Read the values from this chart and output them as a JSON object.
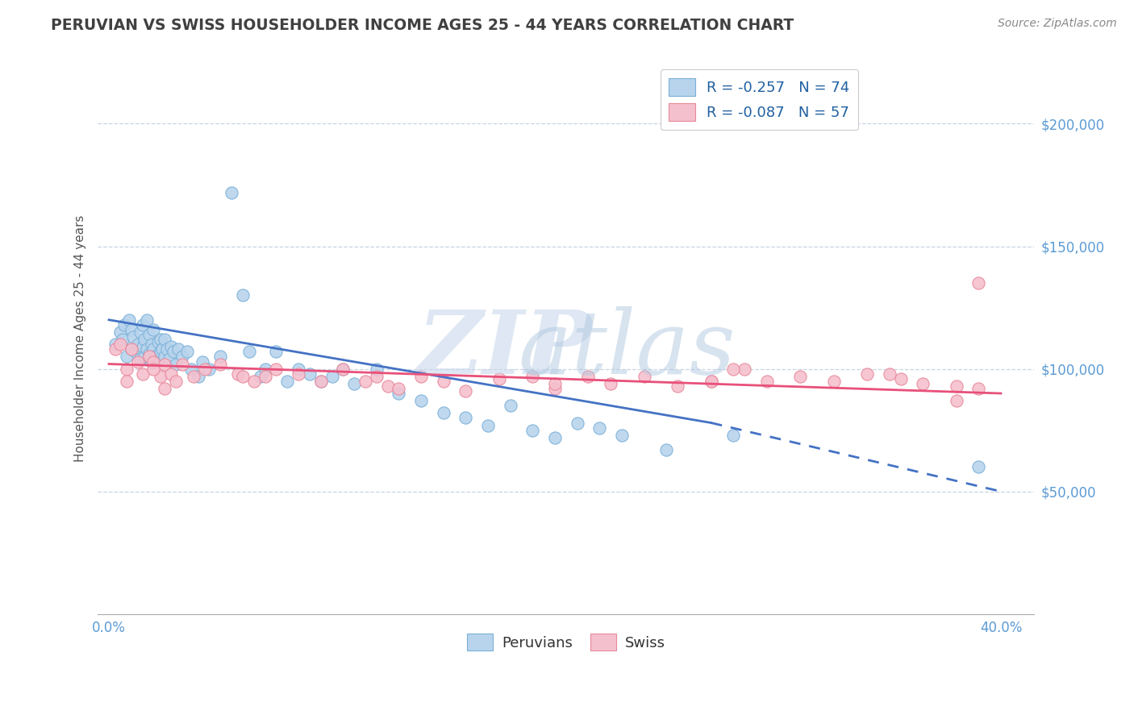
{
  "title": "PERUVIAN VS SWISS HOUSEHOLDER INCOME AGES 25 - 44 YEARS CORRELATION CHART",
  "source_text": "Source: ZipAtlas.com",
  "ylabel": "Householder Income Ages 25 - 44 years",
  "xlim": [
    -0.005,
    0.415
  ],
  "ylim": [
    0,
    225000
  ],
  "yticks": [
    0,
    50000,
    100000,
    150000,
    200000
  ],
  "ytick_labels": [
    "",
    "$50,000",
    "$100,000",
    "$150,000",
    "$200,000"
  ],
  "xtick_labels": [
    "0.0%",
    "",
    "",
    "",
    "40.0%"
  ],
  "xticks": [
    0.0,
    0.1,
    0.2,
    0.3,
    0.4
  ],
  "legend_entry_1": "R = -0.257   N = 74",
  "legend_entry_2": "R = -0.087   N = 57",
  "peruvian_color": "#b8d4ed",
  "peruvian_edge": "#7ab0d8",
  "swiss_color": "#f5c0ce",
  "swiss_edge": "#e8889a",
  "trend_peruvian_color": "#4472c4",
  "trend_swiss_color": "#e8507a",
  "background_color": "#ffffff",
  "grid_color": "#c8d4e4",
  "title_color": "#404040",
  "axis_label_color": "#555555",
  "tick_color": "#5b9bd5",
  "legend_label_color": "#2060a0",
  "watermark_zip_color": "#c8d8ec",
  "watermark_atlas_color": "#b0c8e0",
  "peruvian_x": [
    0.003,
    0.005,
    0.006,
    0.007,
    0.008,
    0.009,
    0.01,
    0.01,
    0.011,
    0.012,
    0.013,
    0.014,
    0.014,
    0.015,
    0.015,
    0.016,
    0.016,
    0.017,
    0.017,
    0.018,
    0.018,
    0.019,
    0.019,
    0.02,
    0.02,
    0.021,
    0.022,
    0.022,
    0.023,
    0.023,
    0.024,
    0.025,
    0.025,
    0.026,
    0.027,
    0.028,
    0.029,
    0.03,
    0.031,
    0.033,
    0.035,
    0.037,
    0.04,
    0.042,
    0.045,
    0.05,
    0.055,
    0.06,
    0.063,
    0.068,
    0.07,
    0.075,
    0.08,
    0.085,
    0.09,
    0.095,
    0.1,
    0.105,
    0.11,
    0.12,
    0.13,
    0.14,
    0.15,
    0.16,
    0.17,
    0.18,
    0.19,
    0.2,
    0.21,
    0.22,
    0.23,
    0.25,
    0.28,
    0.39
  ],
  "peruvian_y": [
    110000,
    115000,
    112000,
    118000,
    105000,
    120000,
    108000,
    116000,
    113000,
    107000,
    110000,
    104000,
    115000,
    109000,
    118000,
    105000,
    112000,
    108000,
    120000,
    106000,
    114000,
    103000,
    110000,
    108000,
    116000,
    105000,
    111000,
    104000,
    112000,
    107000,
    108000,
    112000,
    105000,
    108000,
    104000,
    109000,
    107000,
    102000,
    108000,
    105000,
    107000,
    100000,
    97000,
    103000,
    100000,
    105000,
    172000,
    130000,
    107000,
    97000,
    100000,
    107000,
    95000,
    100000,
    98000,
    95000,
    97000,
    100000,
    94000,
    100000,
    90000,
    87000,
    82000,
    80000,
    77000,
    85000,
    75000,
    72000,
    78000,
    76000,
    73000,
    67000,
    73000,
    60000
  ],
  "swiss_x": [
    0.003,
    0.005,
    0.008,
    0.01,
    0.013,
    0.015,
    0.018,
    0.02,
    0.023,
    0.025,
    0.028,
    0.03,
    0.033,
    0.038,
    0.043,
    0.05,
    0.058,
    0.065,
    0.075,
    0.085,
    0.095,
    0.105,
    0.115,
    0.125,
    0.14,
    0.15,
    0.16,
    0.175,
    0.19,
    0.2,
    0.215,
    0.225,
    0.24,
    0.255,
    0.27,
    0.285,
    0.295,
    0.31,
    0.325,
    0.34,
    0.355,
    0.365,
    0.38,
    0.39,
    0.008,
    0.02,
    0.06,
    0.12,
    0.2,
    0.28,
    0.35,
    0.38,
    0.025,
    0.07,
    0.13,
    0.27,
    0.39
  ],
  "swiss_y": [
    108000,
    110000,
    100000,
    108000,
    103000,
    98000,
    105000,
    103000,
    97000,
    102000,
    98000,
    95000,
    102000,
    97000,
    100000,
    102000,
    98000,
    95000,
    100000,
    98000,
    95000,
    100000,
    95000,
    93000,
    97000,
    95000,
    91000,
    96000,
    97000,
    92000,
    97000,
    94000,
    97000,
    93000,
    95000,
    100000,
    95000,
    97000,
    95000,
    98000,
    96000,
    94000,
    93000,
    92000,
    95000,
    100000,
    97000,
    97000,
    94000,
    100000,
    98000,
    87000,
    92000,
    97000,
    92000,
    95000,
    135000
  ],
  "trend_p_x0": 0.0,
  "trend_p_y0": 120000,
  "trend_p_x_break": 0.27,
  "trend_p_y_break": 78000,
  "trend_p_x1": 0.4,
  "trend_p_y1": 50000,
  "trend_s_x0": 0.0,
  "trend_s_y0": 102000,
  "trend_s_x1": 0.4,
  "trend_s_y1": 90000
}
